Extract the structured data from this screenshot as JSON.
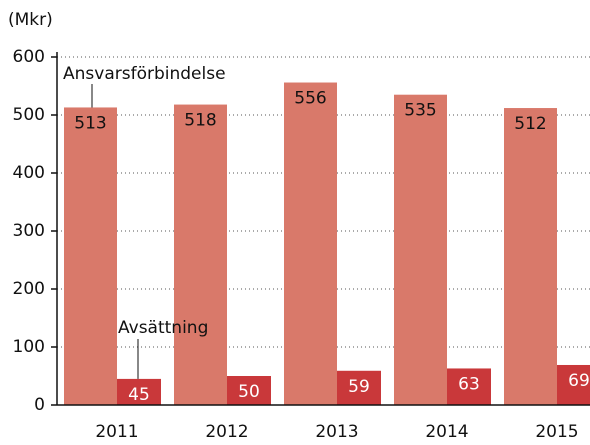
{
  "chart_data": {
    "type": "bar",
    "y_label": "(Mkr)",
    "categories": [
      "2011",
      "2012",
      "2013",
      "2014",
      "2015"
    ],
    "series": [
      {
        "name": "Ansvarsförbindelse",
        "color": "#d9796a",
        "values": [
          513,
          518,
          556,
          535,
          512
        ]
      },
      {
        "name": "Avsättning",
        "color": "#c9383a",
        "values": [
          45,
          50,
          59,
          63,
          69
        ]
      }
    ],
    "ylim": [
      0,
      600
    ],
    "yticks": [
      0,
      100,
      200,
      300,
      400,
      500,
      600
    ],
    "grid": true
  }
}
